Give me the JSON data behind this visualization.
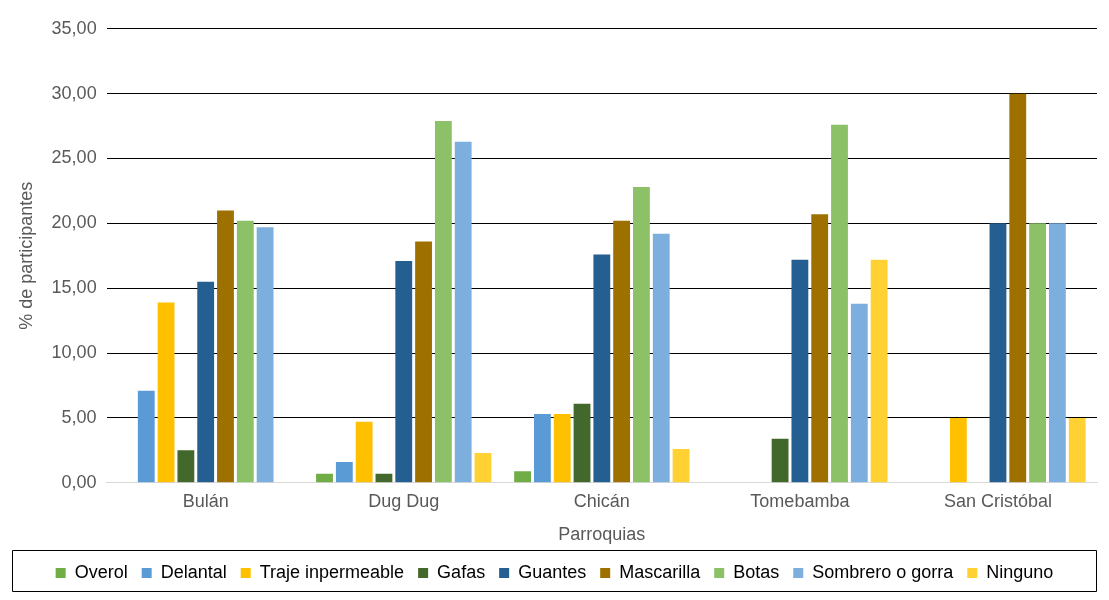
{
  "chart_data": {
    "type": "bar",
    "xlabel": "Parroquias",
    "ylabel": "% de participantes",
    "categories": [
      "Bulán",
      "Dug Dug",
      "Chicán",
      "Tomebamba",
      "San Cristóbal"
    ],
    "series": [
      {
        "name": "Overol",
        "color": "#70ad47",
        "values": [
          0,
          0.7,
          0.9,
          0,
          0
        ]
      },
      {
        "name": "Delantal",
        "color": "#5b9bd5",
        "values": [
          7.1,
          1.6,
          5.3,
          0,
          0
        ]
      },
      {
        "name": "Traje inpermeable",
        "color": "#ffc000",
        "values": [
          13.9,
          4.7,
          5.3,
          0,
          5.0
        ]
      },
      {
        "name": "Gafas",
        "color": "#43682b",
        "values": [
          2.5,
          0.7,
          6.1,
          3.4,
          0
        ]
      },
      {
        "name": "Guantes",
        "color": "#255e91",
        "values": [
          15.5,
          17.1,
          17.6,
          17.2,
          20.0
        ]
      },
      {
        "name": "Mascarilla",
        "color": "#9e7000",
        "values": [
          21.0,
          18.6,
          20.2,
          20.7,
          30.0
        ]
      },
      {
        "name": "Botas",
        "color": "#8cc168",
        "values": [
          20.2,
          27.9,
          22.8,
          27.6,
          20.0
        ]
      },
      {
        "name": "Sombrero o gorra",
        "color": "#7cafdd",
        "values": [
          19.7,
          26.3,
          19.2,
          13.8,
          20.0
        ]
      },
      {
        "name": "Ninguno",
        "color": "#ffd133",
        "values": [
          0,
          2.3,
          2.6,
          17.2,
          5.0
        ]
      }
    ],
    "ylim": [
      0,
      35
    ],
    "yticks": [
      {
        "value": 0,
        "label": "0,00"
      },
      {
        "value": 5,
        "label": "5,00"
      },
      {
        "value": 10,
        "label": "10,00"
      },
      {
        "value": 15,
        "label": "15,00"
      },
      {
        "value": 20,
        "label": "20,00"
      },
      {
        "value": 25,
        "label": "25,00"
      },
      {
        "value": 30,
        "label": "30,00"
      },
      {
        "value": 35,
        "label": "35,00"
      }
    ],
    "grid": "y",
    "legend": "bottom"
  }
}
